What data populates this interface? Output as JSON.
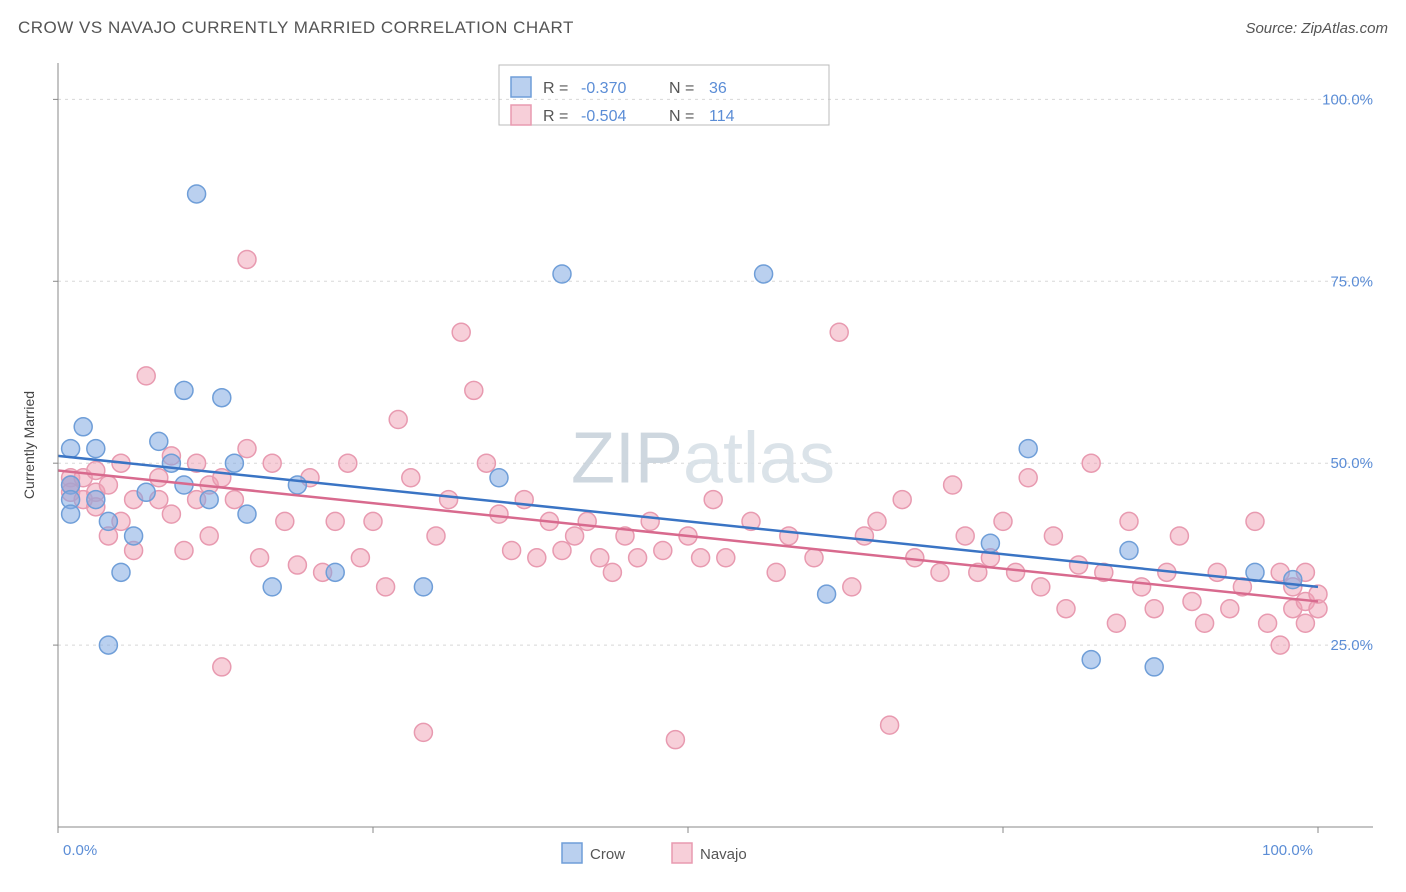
{
  "title": "CROW VS NAVAJO CURRENTLY MARRIED CORRELATION CHART",
  "source": "Source: ZipAtlas.com",
  "watermark_a": "ZIP",
  "watermark_b": "atlas",
  "ylabel": "Currently Married",
  "chart": {
    "type": "scatter",
    "xlim": [
      0,
      100
    ],
    "ylim": [
      0,
      105
    ],
    "x_ticks": [
      0,
      100
    ],
    "x_tick_labels": [
      "0.0%",
      "100.0%"
    ],
    "x_minor_ticks": [
      25,
      50,
      75
    ],
    "y_ticks": [
      25,
      50,
      75,
      100
    ],
    "y_tick_labels": [
      "25.0%",
      "50.0%",
      "75.0%",
      "100.0%"
    ],
    "background_color": "#ffffff",
    "grid_color": "#d8d8d8",
    "axis_color": "#888888",
    "tick_label_color": "#5b8dd6",
    "tick_label_fontsize": 15,
    "ylabel_fontsize": 14,
    "ylabel_color": "#444444",
    "marker_radius": 9,
    "marker_stroke_width": 1.5,
    "trend_line_width": 2.5,
    "series": [
      {
        "name": "Crow",
        "color_fill": "rgba(130,170,225,0.55)",
        "color_stroke": "#6f9ed8",
        "line_color": "#3a74c4",
        "R": "-0.370",
        "N": "36",
        "trend": {
          "x1": 0,
          "y1": 51,
          "x2": 100,
          "y2": 33
        },
        "points": [
          [
            1,
            52
          ],
          [
            1,
            47
          ],
          [
            1,
            45
          ],
          [
            1,
            43
          ],
          [
            2,
            55
          ],
          [
            3,
            52
          ],
          [
            3,
            45
          ],
          [
            4,
            25
          ],
          [
            4,
            42
          ],
          [
            5,
            35
          ],
          [
            6,
            40
          ],
          [
            7,
            46
          ],
          [
            8,
            53
          ],
          [
            9,
            50
          ],
          [
            10,
            60
          ],
          [
            10,
            47
          ],
          [
            11,
            87
          ],
          [
            12,
            45
          ],
          [
            13,
            59
          ],
          [
            14,
            50
          ],
          [
            15,
            43
          ],
          [
            17,
            33
          ],
          [
            19,
            47
          ],
          [
            22,
            35
          ],
          [
            29,
            33
          ],
          [
            35,
            48
          ],
          [
            40,
            76
          ],
          [
            56,
            76
          ],
          [
            61,
            32
          ],
          [
            74,
            39
          ],
          [
            77,
            52
          ],
          [
            82,
            23
          ],
          [
            85,
            38
          ],
          [
            87,
            22
          ],
          [
            95,
            35
          ],
          [
            98,
            34
          ]
        ]
      },
      {
        "name": "Navajo",
        "color_fill": "rgba(240,160,180,0.5)",
        "color_stroke": "#e89ab0",
        "line_color": "#d86a8e",
        "R": "-0.504",
        "N": "114",
        "trend": {
          "x1": 0,
          "y1": 49,
          "x2": 100,
          "y2": 31
        },
        "points": [
          [
            1,
            48
          ],
          [
            1,
            47
          ],
          [
            1,
            46
          ],
          [
            2,
            48
          ],
          [
            2,
            45
          ],
          [
            3,
            49
          ],
          [
            3,
            46
          ],
          [
            3,
            44
          ],
          [
            4,
            40
          ],
          [
            4,
            47
          ],
          [
            5,
            50
          ],
          [
            5,
            42
          ],
          [
            6,
            45
          ],
          [
            6,
            38
          ],
          [
            7,
            62
          ],
          [
            8,
            48
          ],
          [
            8,
            45
          ],
          [
            9,
            51
          ],
          [
            9,
            43
          ],
          [
            10,
            38
          ],
          [
            11,
            50
          ],
          [
            11,
            45
          ],
          [
            12,
            47
          ],
          [
            12,
            40
          ],
          [
            13,
            48
          ],
          [
            13,
            22
          ],
          [
            14,
            45
          ],
          [
            15,
            52
          ],
          [
            15,
            78
          ],
          [
            16,
            37
          ],
          [
            17,
            50
          ],
          [
            18,
            42
          ],
          [
            19,
            36
          ],
          [
            20,
            48
          ],
          [
            21,
            35
          ],
          [
            22,
            42
          ],
          [
            23,
            50
          ],
          [
            24,
            37
          ],
          [
            25,
            42
          ],
          [
            26,
            33
          ],
          [
            27,
            56
          ],
          [
            28,
            48
          ],
          [
            29,
            13
          ],
          [
            30,
            40
          ],
          [
            31,
            45
          ],
          [
            32,
            68
          ],
          [
            33,
            60
          ],
          [
            34,
            50
          ],
          [
            35,
            43
          ],
          [
            36,
            38
          ],
          [
            37,
            45
          ],
          [
            38,
            37
          ],
          [
            39,
            42
          ],
          [
            40,
            38
          ],
          [
            41,
            40
          ],
          [
            42,
            42
          ],
          [
            43,
            37
          ],
          [
            44,
            35
          ],
          [
            45,
            40
          ],
          [
            46,
            37
          ],
          [
            47,
            42
          ],
          [
            48,
            38
          ],
          [
            49,
            12
          ],
          [
            50,
            40
          ],
          [
            51,
            37
          ],
          [
            52,
            45
          ],
          [
            53,
            37
          ],
          [
            55,
            42
          ],
          [
            57,
            35
          ],
          [
            58,
            40
          ],
          [
            60,
            37
          ],
          [
            62,
            68
          ],
          [
            63,
            33
          ],
          [
            64,
            40
          ],
          [
            65,
            42
          ],
          [
            66,
            14
          ],
          [
            67,
            45
          ],
          [
            68,
            37
          ],
          [
            70,
            35
          ],
          [
            71,
            47
          ],
          [
            72,
            40
          ],
          [
            73,
            35
          ],
          [
            74,
            37
          ],
          [
            75,
            42
          ],
          [
            76,
            35
          ],
          [
            77,
            48
          ],
          [
            78,
            33
          ],
          [
            79,
            40
          ],
          [
            80,
            30
          ],
          [
            81,
            36
          ],
          [
            82,
            50
          ],
          [
            83,
            35
          ],
          [
            84,
            28
          ],
          [
            85,
            42
          ],
          [
            86,
            33
          ],
          [
            87,
            30
          ],
          [
            88,
            35
          ],
          [
            89,
            40
          ],
          [
            90,
            31
          ],
          [
            91,
            28
          ],
          [
            92,
            35
          ],
          [
            93,
            30
          ],
          [
            94,
            33
          ],
          [
            95,
            42
          ],
          [
            96,
            28
          ],
          [
            97,
            35
          ],
          [
            97,
            25
          ],
          [
            98,
            30
          ],
          [
            98,
            33
          ],
          [
            99,
            28
          ],
          [
            99,
            31
          ],
          [
            99,
            35
          ],
          [
            100,
            30
          ],
          [
            100,
            32
          ]
        ]
      }
    ]
  },
  "legend_top": {
    "box_border": "#bbbbbb",
    "label_R": "R =",
    "label_N": "N ="
  },
  "legend_bottom": {
    "items": [
      "Crow",
      "Navajo"
    ]
  }
}
